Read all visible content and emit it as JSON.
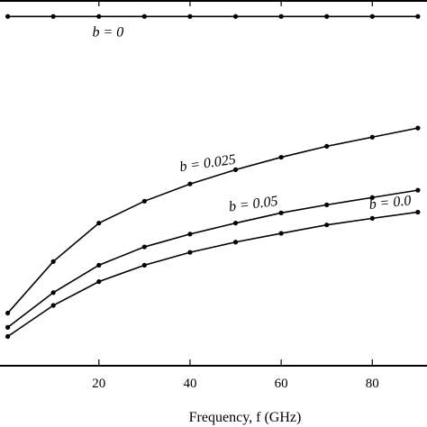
{
  "chart_data": {
    "type": "line",
    "title": "",
    "xlabel": "Frequency, f (GHz)",
    "ylabel": "",
    "xlim": [
      -1.7,
      92
    ],
    "ylim": [
      0,
      1
    ],
    "x_ticks": [
      20,
      40,
      60,
      80
    ],
    "grid": false,
    "series": [
      {
        "name": "b = 0",
        "x": [
          0,
          10,
          20,
          30,
          40,
          50,
          60,
          70,
          80,
          90
        ],
        "values": [
          0.955,
          0.955,
          0.955,
          0.955,
          0.955,
          0.955,
          0.955,
          0.955,
          0.955,
          0.955
        ]
      },
      {
        "name": "b = 0.025",
        "x": [
          0,
          10,
          20,
          30,
          40,
          50,
          60,
          70,
          80,
          90
        ],
        "values": [
          0.144,
          0.285,
          0.39,
          0.45,
          0.497,
          0.536,
          0.57,
          0.6,
          0.625,
          0.65
        ]
      },
      {
        "name": "b = 0.05",
        "x": [
          0,
          10,
          20,
          30,
          40,
          50,
          60,
          70,
          80,
          90
        ],
        "values": [
          0.105,
          0.2,
          0.275,
          0.325,
          0.36,
          0.39,
          0.418,
          0.44,
          0.46,
          0.48
        ]
      },
      {
        "name": "b = 0.0",
        "x": [
          0,
          10,
          20,
          30,
          40,
          50,
          60,
          70,
          80,
          90
        ],
        "values": [
          0.08,
          0.165,
          0.23,
          0.275,
          0.31,
          0.338,
          0.362,
          0.385,
          0.403,
          0.42
        ]
      }
    ],
    "annotations": [
      {
        "text": "b = 0",
        "series": 0
      },
      {
        "text": "b = 0.025",
        "series": 1
      },
      {
        "text": "b = 0.05",
        "series": 2
      },
      {
        "text": "b = 0.0",
        "series": 3
      }
    ]
  }
}
